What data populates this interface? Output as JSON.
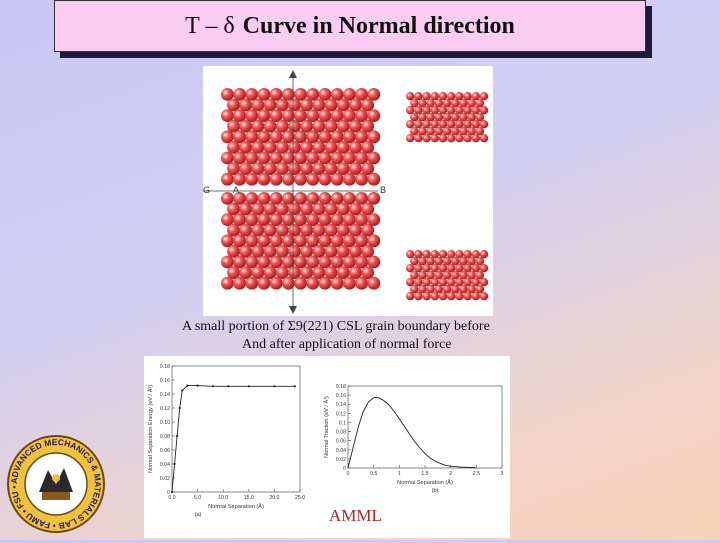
{
  "title": {
    "symbol": "T – δ",
    "text": "Curve in Normal direction"
  },
  "crystal": {
    "label_g": "G",
    "label_a": "A",
    "label_b": "B"
  },
  "caption": {
    "line1": "A small portion of  Σ9(221) CSL grain boundary before",
    "line2": "And after application of normal force"
  },
  "footer": {
    "amml": "AMML"
  },
  "logo": {
    "text": "ADVANCED MECHANICS & MATERIALS LAB • FAMU • FSU •"
  },
  "chart_data": [
    {
      "type": "scatter",
      "panel": "(a)",
      "xlabel": "Normal Separation (Å)",
      "ylabel": "Normal Separation Energy (eV / Å²)",
      "xlim": [
        0,
        25
      ],
      "ylim": [
        0,
        0.18
      ],
      "xticks": [
        "0.0",
        "5.0",
        "10.0",
        "15.0",
        "20.0",
        "25.0"
      ],
      "yticks": [
        "0",
        "0.02",
        "0.04",
        "0.06",
        "0.08",
        "0.10",
        "0.12",
        "0.14",
        "0.16",
        "0.18"
      ],
      "x": [
        0,
        0.5,
        1.0,
        1.5,
        2.0,
        3.0,
        5.0,
        8.0,
        11.0,
        15.0,
        20.0,
        24.0
      ],
      "y": [
        0.0,
        0.04,
        0.08,
        0.12,
        0.145,
        0.152,
        0.152,
        0.151,
        0.151,
        0.151,
        0.151,
        0.151
      ]
    },
    {
      "type": "line",
      "panel": "(b)",
      "xlabel": "Normal Separation (Å)",
      "ylabel": "Normal Traction (eV / Å³)",
      "xlim": [
        0,
        3
      ],
      "ylim": [
        0,
        0.18
      ],
      "xticks": [
        "0",
        "0.5",
        "1",
        "1.5",
        "2",
        "2.5",
        "3"
      ],
      "yticks": [
        "0",
        "0.02",
        "0.04",
        "0.06",
        "0.08",
        "0.1",
        "0.12",
        "0.14",
        "0.16",
        "0.18"
      ],
      "x": [
        0,
        0.1,
        0.2,
        0.3,
        0.4,
        0.5,
        0.55,
        0.6,
        0.7,
        0.8,
        0.9,
        1.0,
        1.1,
        1.2,
        1.3,
        1.4,
        1.5,
        1.6,
        1.7,
        1.8,
        1.9,
        2.0,
        2.2,
        2.4,
        2.5
      ],
      "y": [
        0,
        0.045,
        0.09,
        0.125,
        0.145,
        0.154,
        0.155,
        0.154,
        0.148,
        0.138,
        0.124,
        0.108,
        0.091,
        0.074,
        0.058,
        0.044,
        0.032,
        0.022,
        0.015,
        0.01,
        0.006,
        0.004,
        0.002,
        0.001,
        0.0
      ]
    }
  ]
}
